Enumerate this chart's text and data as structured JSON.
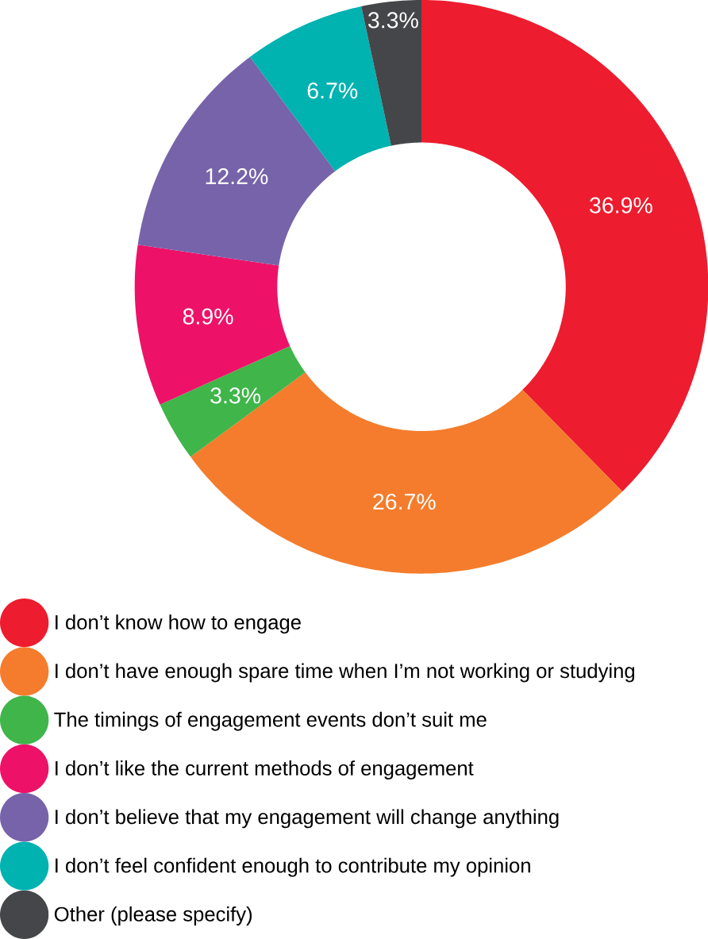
{
  "chart_data": {
    "type": "donut",
    "categories": [
      "I don’t know how to engage",
      "I don’t have enough spare time when I’m not working or studying",
      "The timings of engagement events don’t suit me",
      "I don’t like the current methods of engagement",
      "I don’t believe that my engagement will change anything",
      "I don’t feel confident enough to contribute my opinion",
      "Other (please specify)"
    ],
    "values": [
      36.9,
      26.7,
      3.3,
      8.9,
      12.2,
      6.7,
      3.3
    ],
    "colors": [
      "#ed1c2e",
      "#f47c2c",
      "#3fb54a",
      "#ed1268",
      "#7763aa",
      "#00b2b0",
      "#454649"
    ],
    "value_labels": [
      "36.9%",
      "26.7%",
      "3.3%",
      "8.9%",
      "12.2%",
      "6.7%",
      "3.3%"
    ],
    "legend": "bottom"
  }
}
